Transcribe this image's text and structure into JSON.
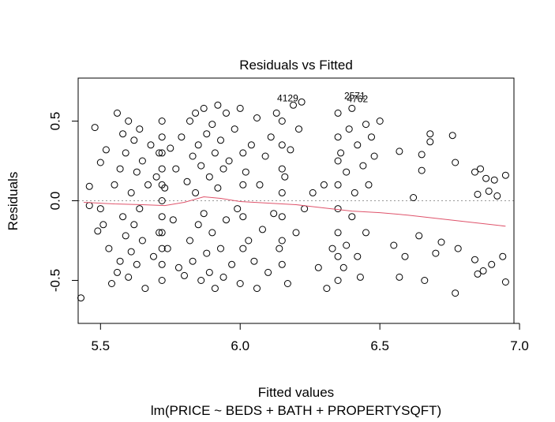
{
  "chart_data": {
    "type": "scatter",
    "title": "Residuals vs Fitted",
    "xlabel": "Fitted values",
    "subtitle": "lm(PRICE ~ BEDS + BATH + PROPERTYSQFT)",
    "ylabel": "Residuals",
    "xlim": [
      5.42,
      6.98
    ],
    "ylim": [
      -0.77,
      0.77
    ],
    "xticks": [
      5.5,
      6.0,
      6.5,
      7.0
    ],
    "xtick_labels": [
      "5.5",
      "6.0",
      "6.5",
      "7.0"
    ],
    "yticks": [
      -0.5,
      0.0,
      0.5
    ],
    "ytick_labels": [
      "-0.5",
      "0.0",
      "0.5"
    ],
    "reference_line_y": 0.0,
    "grid": false,
    "point_color": "#000000",
    "smooth_color": "#DF536B",
    "reference_color": "#999999",
    "annotations": [
      {
        "label": "4129",
        "x": 6.17,
        "y": 0.625
      },
      {
        "label": "2571",
        "x": 6.41,
        "y": 0.64
      },
      {
        "label": "4762",
        "x": 6.42,
        "y": 0.62
      }
    ],
    "smooth": [
      {
        "x": 5.44,
        "y": -0.01
      },
      {
        "x": 5.55,
        "y": -0.02
      },
      {
        "x": 5.65,
        "y": -0.025
      },
      {
        "x": 5.73,
        "y": -0.03
      },
      {
        "x": 5.8,
        "y": -0.01
      },
      {
        "x": 5.87,
        "y": 0.025
      },
      {
        "x": 5.93,
        "y": 0.015
      },
      {
        "x": 6.0,
        "y": -0.005
      },
      {
        "x": 6.1,
        "y": -0.015
      },
      {
        "x": 6.2,
        "y": -0.025
      },
      {
        "x": 6.3,
        "y": -0.045
      },
      {
        "x": 6.4,
        "y": -0.065
      },
      {
        "x": 6.5,
        "y": -0.075
      },
      {
        "x": 6.6,
        "y": -0.09
      },
      {
        "x": 6.7,
        "y": -0.11
      },
      {
        "x": 6.8,
        "y": -0.13
      },
      {
        "x": 6.95,
        "y": -0.16
      }
    ],
    "points": [
      {
        "x": 5.43,
        "y": -0.61
      },
      {
        "x": 5.46,
        "y": 0.09
      },
      {
        "x": 5.46,
        "y": -0.03
      },
      {
        "x": 5.48,
        "y": 0.46
      },
      {
        "x": 5.49,
        "y": -0.19
      },
      {
        "x": 5.5,
        "y": 0.24
      },
      {
        "x": 5.5,
        "y": -0.05
      },
      {
        "x": 5.51,
        "y": -0.15
      },
      {
        "x": 5.52,
        "y": 0.32
      },
      {
        "x": 5.53,
        "y": -0.3
      },
      {
        "x": 5.54,
        "y": -0.52
      },
      {
        "x": 5.55,
        "y": 0.1
      },
      {
        "x": 5.56,
        "y": 0.55
      },
      {
        "x": 5.56,
        "y": -0.45
      },
      {
        "x": 5.57,
        "y": 0.2
      },
      {
        "x": 5.57,
        "y": -0.38
      },
      {
        "x": 5.58,
        "y": 0.42
      },
      {
        "x": 5.58,
        "y": -0.1
      },
      {
        "x": 5.59,
        "y": 0.3
      },
      {
        "x": 5.59,
        "y": -0.22
      },
      {
        "x": 5.6,
        "y": 0.5
      },
      {
        "x": 5.6,
        "y": -0.48
      },
      {
        "x": 5.61,
        "y": 0.05
      },
      {
        "x": 5.61,
        "y": -0.32
      },
      {
        "x": 5.62,
        "y": 0.38
      },
      {
        "x": 5.62,
        "y": -0.15
      },
      {
        "x": 5.63,
        "y": 0.18
      },
      {
        "x": 5.63,
        "y": -0.4
      },
      {
        "x": 5.64,
        "y": 0.45
      },
      {
        "x": 5.64,
        "y": -0.05
      },
      {
        "x": 5.65,
        "y": 0.25
      },
      {
        "x": 5.65,
        "y": -0.25
      },
      {
        "x": 5.66,
        "y": -0.55
      },
      {
        "x": 5.67,
        "y": 0.1
      },
      {
        "x": 5.68,
        "y": 0.35
      },
      {
        "x": 5.69,
        "y": -0.35
      },
      {
        "x": 5.7,
        "y": 0.15
      },
      {
        "x": 5.71,
        "y": 0.3
      },
      {
        "x": 5.71,
        "y": -0.2
      },
      {
        "x": 5.72,
        "y": 0.5
      },
      {
        "x": 5.72,
        "y": 0.4
      },
      {
        "x": 5.72,
        "y": 0.3
      },
      {
        "x": 5.72,
        "y": 0.2
      },
      {
        "x": 5.72,
        "y": 0.1
      },
      {
        "x": 5.72,
        "y": 0.0
      },
      {
        "x": 5.72,
        "y": -0.1
      },
      {
        "x": 5.72,
        "y": -0.2
      },
      {
        "x": 5.72,
        "y": -0.3
      },
      {
        "x": 5.72,
        "y": -0.4
      },
      {
        "x": 5.72,
        "y": -0.5
      },
      {
        "x": 5.73,
        "y": 0.08
      },
      {
        "x": 5.74,
        "y": -0.3
      },
      {
        "x": 5.75,
        "y": 0.33
      },
      {
        "x": 5.76,
        "y": -0.12
      },
      {
        "x": 5.77,
        "y": 0.2
      },
      {
        "x": 5.78,
        "y": -0.42
      },
      {
        "x": 5.79,
        "y": 0.4
      },
      {
        "x": 5.8,
        "y": -0.47
      },
      {
        "x": 5.81,
        "y": 0.12
      },
      {
        "x": 5.82,
        "y": 0.5
      },
      {
        "x": 5.82,
        "y": -0.25
      },
      {
        "x": 5.83,
        "y": 0.28
      },
      {
        "x": 5.83,
        "y": -0.38
      },
      {
        "x": 5.84,
        "y": 0.55
      },
      {
        "x": 5.84,
        "y": 0.05
      },
      {
        "x": 5.85,
        "y": -0.15
      },
      {
        "x": 5.85,
        "y": 0.35
      },
      {
        "x": 5.86,
        "y": -0.5
      },
      {
        "x": 5.86,
        "y": 0.22
      },
      {
        "x": 5.87,
        "y": 0.58
      },
      {
        "x": 5.87,
        "y": -0.08
      },
      {
        "x": 5.88,
        "y": 0.42
      },
      {
        "x": 5.88,
        "y": -0.33
      },
      {
        "x": 5.89,
        "y": 0.15
      },
      {
        "x": 5.89,
        "y": -0.45
      },
      {
        "x": 5.9,
        "y": 0.48
      },
      {
        "x": 5.9,
        "y": -0.2
      },
      {
        "x": 5.91,
        "y": 0.3
      },
      {
        "x": 5.91,
        "y": -0.55
      },
      {
        "x": 5.92,
        "y": 0.6
      },
      {
        "x": 5.92,
        "y": 0.08
      },
      {
        "x": 5.93,
        "y": -0.3
      },
      {
        "x": 5.93,
        "y": 0.38
      },
      {
        "x": 5.94,
        "y": -0.48
      },
      {
        "x": 5.94,
        "y": 0.2
      },
      {
        "x": 5.95,
        "y": 0.55
      },
      {
        "x": 5.95,
        "y": -0.12
      },
      {
        "x": 5.96,
        "y": 0.25
      },
      {
        "x": 5.97,
        "y": -0.4
      },
      {
        "x": 5.98,
        "y": 0.45
      },
      {
        "x": 5.99,
        "y": -0.05
      },
      {
        "x": 6.0,
        "y": 0.58
      },
      {
        "x": 6.0,
        "y": -0.52
      },
      {
        "x": 6.01,
        "y": 0.3
      },
      {
        "x": 6.01,
        "y": 0.1
      },
      {
        "x": 6.01,
        "y": -0.1
      },
      {
        "x": 6.01,
        "y": -0.3
      },
      {
        "x": 6.02,
        "y": 0.18
      },
      {
        "x": 6.03,
        "y": -0.25
      },
      {
        "x": 6.04,
        "y": 0.35
      },
      {
        "x": 6.05,
        "y": -0.38
      },
      {
        "x": 6.06,
        "y": 0.52
      },
      {
        "x": 6.06,
        "y": -0.55
      },
      {
        "x": 6.07,
        "y": 0.1
      },
      {
        "x": 6.08,
        "y": -0.18
      },
      {
        "x": 6.09,
        "y": 0.28
      },
      {
        "x": 6.1,
        "y": -0.45
      },
      {
        "x": 6.11,
        "y": 0.4
      },
      {
        "x": 6.12,
        "y": -0.08
      },
      {
        "x": 6.13,
        "y": 0.55
      },
      {
        "x": 6.14,
        "y": -0.3
      },
      {
        "x": 6.15,
        "y": 0.5
      },
      {
        "x": 6.15,
        "y": 0.35
      },
      {
        "x": 6.15,
        "y": 0.2
      },
      {
        "x": 6.15,
        "y": 0.05
      },
      {
        "x": 6.15,
        "y": -0.1
      },
      {
        "x": 6.15,
        "y": -0.25
      },
      {
        "x": 6.15,
        "y": -0.4
      },
      {
        "x": 6.16,
        "y": 0.15
      },
      {
        "x": 6.17,
        "y": -0.52
      },
      {
        "x": 6.18,
        "y": 0.32
      },
      {
        "x": 6.19,
        "y": 0.6
      },
      {
        "x": 6.2,
        "y": -0.2
      },
      {
        "x": 6.21,
        "y": 0.45
      },
      {
        "x": 6.22,
        "y": 0.62
      },
      {
        "x": 6.23,
        "y": -0.05
      },
      {
        "x": 6.26,
        "y": 0.05
      },
      {
        "x": 6.28,
        "y": -0.42
      },
      {
        "x": 6.3,
        "y": 0.1
      },
      {
        "x": 6.31,
        "y": -0.55
      },
      {
        "x": 6.33,
        "y": -0.3
      },
      {
        "x": 6.35,
        "y": 0.55
      },
      {
        "x": 6.35,
        "y": 0.4
      },
      {
        "x": 6.35,
        "y": 0.25
      },
      {
        "x": 6.35,
        "y": 0.1
      },
      {
        "x": 6.35,
        "y": -0.05
      },
      {
        "x": 6.35,
        "y": -0.2
      },
      {
        "x": 6.35,
        "y": -0.35
      },
      {
        "x": 6.35,
        "y": -0.5
      },
      {
        "x": 6.36,
        "y": 0.3
      },
      {
        "x": 6.37,
        "y": -0.42
      },
      {
        "x": 6.38,
        "y": 0.18
      },
      {
        "x": 6.38,
        "y": -0.28
      },
      {
        "x": 6.39,
        "y": 0.45
      },
      {
        "x": 6.4,
        "y": -0.1
      },
      {
        "x": 6.4,
        "y": 0.58
      },
      {
        "x": 6.41,
        "y": 0.05
      },
      {
        "x": 6.42,
        "y": -0.35
      },
      {
        "x": 6.42,
        "y": 0.35
      },
      {
        "x": 6.43,
        "y": -0.48
      },
      {
        "x": 6.44,
        "y": 0.22
      },
      {
        "x": 6.45,
        "y": -0.2
      },
      {
        "x": 6.45,
        "y": 0.48
      },
      {
        "x": 6.46,
        "y": 0.1
      },
      {
        "x": 6.47,
        "y": 0.4
      },
      {
        "x": 6.48,
        "y": 0.28
      },
      {
        "x": 6.5,
        "y": 0.5
      },
      {
        "x": 6.55,
        "y": -0.28
      },
      {
        "x": 6.57,
        "y": 0.31
      },
      {
        "x": 6.57,
        "y": -0.48
      },
      {
        "x": 6.59,
        "y": -0.35
      },
      {
        "x": 6.62,
        "y": 0.02
      },
      {
        "x": 6.64,
        "y": -0.22
      },
      {
        "x": 6.65,
        "y": 0.29
      },
      {
        "x": 6.65,
        "y": 0.19
      },
      {
        "x": 6.66,
        "y": -0.5
      },
      {
        "x": 6.68,
        "y": 0.42
      },
      {
        "x": 6.68,
        "y": 0.37
      },
      {
        "x": 6.7,
        "y": -0.33
      },
      {
        "x": 6.72,
        "y": -0.26
      },
      {
        "x": 6.76,
        "y": 0.41
      },
      {
        "x": 6.77,
        "y": 0.24
      },
      {
        "x": 6.77,
        "y": -0.58
      },
      {
        "x": 6.78,
        "y": -0.3
      },
      {
        "x": 6.84,
        "y": 0.18
      },
      {
        "x": 6.84,
        "y": -0.37
      },
      {
        "x": 6.85,
        "y": 0.04
      },
      {
        "x": 6.85,
        "y": -0.46
      },
      {
        "x": 6.86,
        "y": 0.2
      },
      {
        "x": 6.87,
        "y": -0.44
      },
      {
        "x": 6.88,
        "y": 0.14
      },
      {
        "x": 6.89,
        "y": 0.06
      },
      {
        "x": 6.9,
        "y": -0.4
      },
      {
        "x": 6.91,
        "y": 0.13
      },
      {
        "x": 6.92,
        "y": 0.03
      },
      {
        "x": 6.94,
        "y": -0.35
      },
      {
        "x": 6.95,
        "y": 0.16
      },
      {
        "x": 6.95,
        "y": -0.51
      }
    ]
  }
}
